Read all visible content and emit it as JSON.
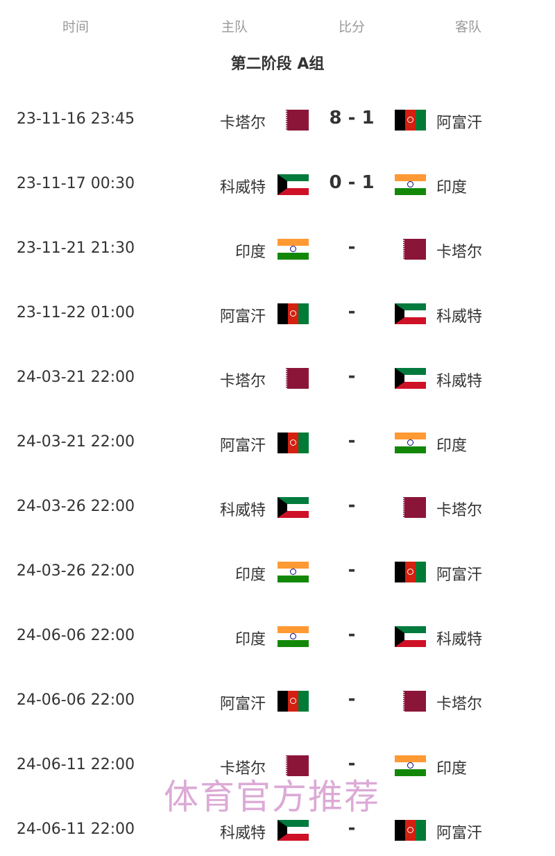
{
  "header": {
    "time": "时间",
    "home": "主队",
    "score": "比分",
    "away": "客队"
  },
  "group_title": "第二阶段 A组",
  "matches": [
    {
      "time": "23-11-16 23:45",
      "home": "卡塔尔",
      "home_flag": "qat",
      "score": "8 - 1",
      "away": "阿富汗",
      "away_flag": "afg"
    },
    {
      "time": "23-11-17 00:30",
      "home": "科威特",
      "home_flag": "kuw",
      "score": "0 - 1",
      "away": "印度",
      "away_flag": "ind"
    },
    {
      "time": "23-11-21 21:30",
      "home": "印度",
      "home_flag": "ind",
      "score": "-",
      "away": "卡塔尔",
      "away_flag": "qat"
    },
    {
      "time": "23-11-22 01:00",
      "home": "阿富汗",
      "home_flag": "afg",
      "score": "-",
      "away": "科威特",
      "away_flag": "kuw"
    },
    {
      "time": "24-03-21 22:00",
      "home": "卡塔尔",
      "home_flag": "qat",
      "score": "-",
      "away": "科威特",
      "away_flag": "kuw"
    },
    {
      "time": "24-03-21 22:00",
      "home": "阿富汗",
      "home_flag": "afg",
      "score": "-",
      "away": "印度",
      "away_flag": "ind"
    },
    {
      "time": "24-03-26 22:00",
      "home": "科威特",
      "home_flag": "kuw",
      "score": "-",
      "away": "卡塔尔",
      "away_flag": "qat"
    },
    {
      "time": "24-03-26 22:00",
      "home": "印度",
      "home_flag": "ind",
      "score": "-",
      "away": "阿富汗",
      "away_flag": "afg"
    },
    {
      "time": "24-06-06 22:00",
      "home": "印度",
      "home_flag": "ind",
      "score": "-",
      "away": "科威特",
      "away_flag": "kuw"
    },
    {
      "time": "24-06-06 22:00",
      "home": "阿富汗",
      "home_flag": "afg",
      "score": "-",
      "away": "卡塔尔",
      "away_flag": "qat"
    },
    {
      "time": "24-06-11 22:00",
      "home": "卡塔尔",
      "home_flag": "qat",
      "score": "-",
      "away": "印度",
      "away_flag": "ind"
    },
    {
      "time": "24-06-11 22:00",
      "home": "科威特",
      "home_flag": "kuw",
      "score": "-",
      "away": "阿富汗",
      "away_flag": "afg"
    }
  ],
  "watermark": "体育官方推荐"
}
